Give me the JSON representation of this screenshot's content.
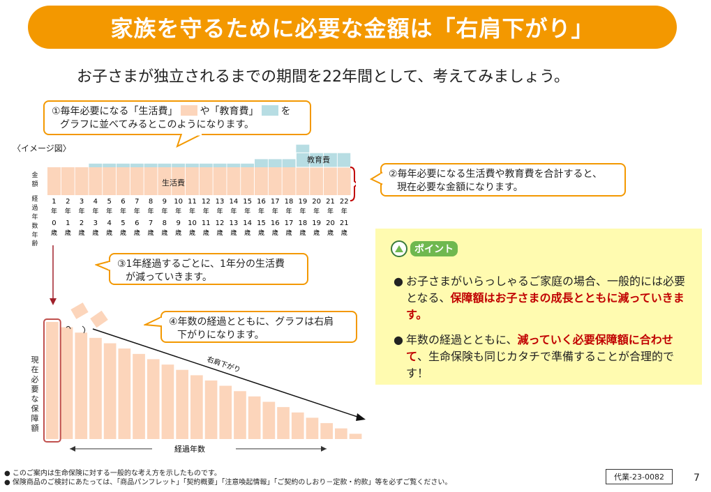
{
  "title": "家族を守るために必要な金額は「右肩下がり」",
  "subtitle": "お子さまが独立されるまでの期間を22年間として、考えてみましょう。",
  "callout1": {
    "line1_a": "①毎年必要になる「生活費」",
    "line1_b": "や「教育費」",
    "line1_c": "を",
    "line2": "グラフに並べてみるとこのようになります。"
  },
  "image_label": "〈イメージ図〉",
  "chart_top": {
    "ylabel": "金額",
    "years_label": "経過年数",
    "age_label": "年齢",
    "label_living": "生活費",
    "label_education": "教育費",
    "years": [
      "1",
      "2",
      "3",
      "4",
      "5",
      "6",
      "7",
      "8",
      "9",
      "10",
      "11",
      "12",
      "13",
      "14",
      "15",
      "16",
      "17",
      "18",
      "19",
      "20",
      "21",
      "22"
    ],
    "year_unit": "年",
    "ages": [
      "0",
      "1",
      "2",
      "3",
      "4",
      "5",
      "6",
      "7",
      "8",
      "9",
      "10",
      "11",
      "12",
      "13",
      "14",
      "15",
      "16",
      "17",
      "18",
      "19",
      "20",
      "21"
    ],
    "age_unit": "歳",
    "living_color": "#fcd5bb",
    "education_color": "#b7dde3"
  },
  "chart_data": {
    "type": "bar",
    "categories": [
      "1",
      "2",
      "3",
      "4",
      "5",
      "6",
      "7",
      "8",
      "9",
      "10",
      "11",
      "12",
      "13",
      "14",
      "15",
      "16",
      "17",
      "18",
      "19",
      "20",
      "21",
      "22"
    ],
    "series": [
      {
        "name": "生活費",
        "values": [
          1,
          1,
          1,
          1,
          1,
          1,
          1,
          1,
          1,
          1,
          1,
          1,
          1,
          1,
          1,
          1,
          1,
          1,
          1,
          1,
          1,
          1
        ]
      },
      {
        "name": "教育費",
        "values": [
          0,
          0,
          0,
          0.13,
          0.13,
          0.13,
          0.13,
          0.13,
          0.13,
          0.13,
          0.13,
          0.13,
          0.13,
          0.13,
          0.13,
          0.29,
          0.29,
          0.29,
          0.81,
          0.52,
          0.52,
          0.52
        ]
      }
    ]
  },
  "callout2": {
    "line1": "②毎年必要になる生活費や教育費を合計すると、",
    "line2": "現在必要な金額になります。"
  },
  "callout3": {
    "line1": "③1年経過するごとに、1年分の生活費",
    "line2": "が減っていきます。"
  },
  "callout4": {
    "line1": "④年数の経過とともに、グラフは右肩",
    "line2": "下がりになります。"
  },
  "chart_bottom": {
    "ylabel": "現在必要な保障額",
    "xlabel": "経過年数",
    "arrow_label": "右肩下がり",
    "values": [
      1.0,
      0.955,
      0.909,
      0.864,
      0.818,
      0.773,
      0.727,
      0.682,
      0.636,
      0.591,
      0.545,
      0.5,
      0.455,
      0.409,
      0.364,
      0.318,
      0.273,
      0.227,
      0.182,
      0.136,
      0.091,
      0.045
    ]
  },
  "point": {
    "badge": "ポイント",
    "item1_a": "お子さまがいらっしゃるご家庭の場合、一般的には必要となる、",
    "item1_b": "保障額はお子さまの成長とともに減っていきます。",
    "item2_a": "年数の経過とともに、",
    "item2_b": "減っていく必要保障額に合わせて",
    "item2_c": "、生命保険も同じカタチで準備することが合理的です！"
  },
  "footnotes": [
    "このご案内は生命保険に対する一般的な考え方を示したものです。",
    "保険商品のご検討にあたっては、「商品パンフレット」「契約概要」「注意喚起情報」「ご契約のしおり－定款・約款」等を必ずご覧ください。"
  ],
  "code": "代業-23-0082",
  "page_number": "7"
}
